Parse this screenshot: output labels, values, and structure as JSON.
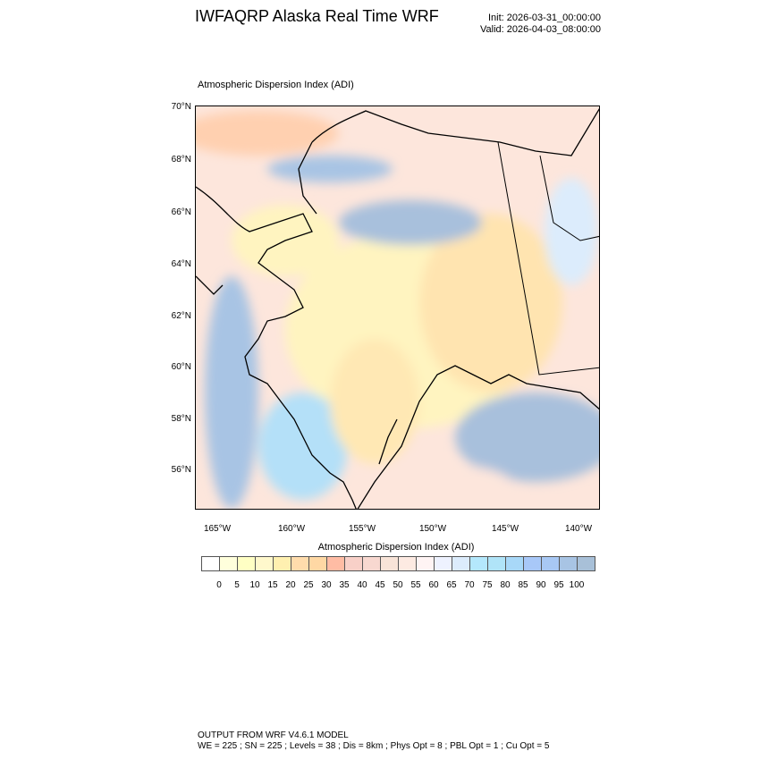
{
  "header": {
    "title": "IWFAQRP Alaska Real Time WRF",
    "init": "Init: 2026-03-31_00:00:00",
    "valid": "Valid: 2026-04-03_08:00:00"
  },
  "map": {
    "title": "Atmospheric Dispersion Index   (ADI)",
    "lat_labels": [
      "70°N",
      "68°N",
      "66°N",
      "64°N",
      "62°N",
      "60°N",
      "58°N",
      "56°N"
    ],
    "lon_labels": [
      "165°W",
      "160°W",
      "155°W",
      "150°W",
      "145°W",
      "140°W"
    ]
  },
  "colorbar": {
    "title": "Atmospheric Dispersion Index  (ADI)",
    "labels": [
      "0",
      "5",
      "10",
      "15",
      "20",
      "25",
      "30",
      "35",
      "40",
      "45",
      "50",
      "55",
      "60",
      "65",
      "70",
      "75",
      "80",
      "85",
      "90",
      "95",
      "100"
    ],
    "colors": [
      "#ffffff",
      "#ffffdc",
      "#ffffc4",
      "#fff8cc",
      "#fff0b0",
      "#ffdcac",
      "#ffd8a4",
      "#ffbca4",
      "#f8d0c8",
      "#f8d8d0",
      "#f8e4d8",
      "#fdeae2",
      "#fff4f4",
      "#eef2ff",
      "#dcecfc",
      "#b4e8fc",
      "#b0e4f8",
      "#a8d8f8",
      "#a8c8f8",
      "#a8c8f4",
      "#a8c4e4",
      "#a8c0d8"
    ]
  },
  "footer": {
    "line1": "OUTPUT FROM WRF V4.6.1 MODEL",
    "line2": "WE = 225 ; SN = 225 ; Levels = 38 ; Dis = 8km ; Phys Opt = 8 ; PBL Opt = 1 ; Cu Opt = 5"
  }
}
